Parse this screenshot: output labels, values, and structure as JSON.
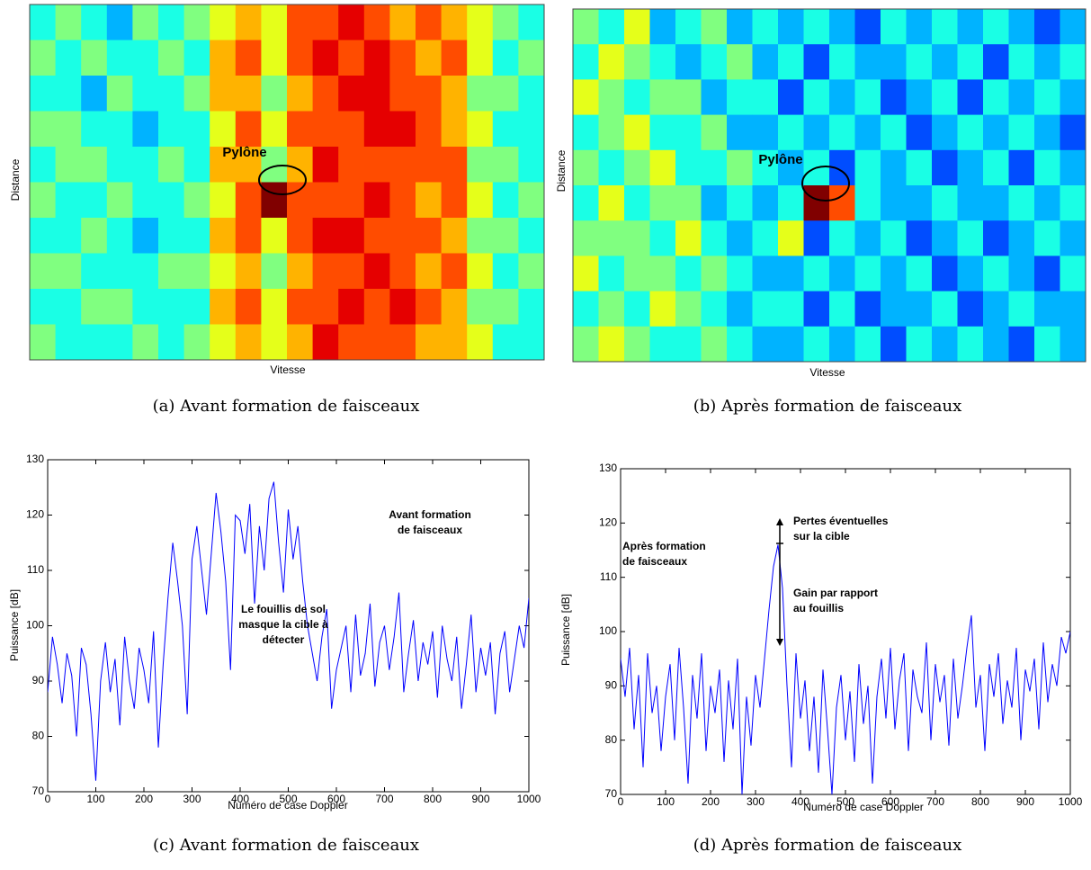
{
  "chart_data": [
    {
      "type": "heatmap",
      "ylabel": "Distance",
      "xlabel": "Vitesse",
      "caption": "(a)  Avant formation de faisceaux",
      "annotation": "Pylône",
      "zlim": [
        0,
        10
      ],
      "values": [
        [
          4,
          5,
          4,
          3,
          5,
          4,
          5,
          6,
          7,
          6,
          8,
          8,
          9,
          8,
          7,
          8,
          7,
          6,
          5,
          4
        ],
        [
          5,
          4,
          5,
          4,
          4,
          5,
          4,
          7,
          8,
          6,
          8,
          9,
          8,
          9,
          8,
          7,
          8,
          6,
          4,
          5
        ],
        [
          4,
          4,
          3,
          5,
          4,
          4,
          5,
          7,
          7,
          5,
          7,
          8,
          9,
          9,
          8,
          8,
          7,
          5,
          5,
          4
        ],
        [
          5,
          5,
          4,
          4,
          3,
          4,
          4,
          6,
          8,
          6,
          8,
          8,
          8,
          9,
          9,
          8,
          7,
          6,
          4,
          4
        ],
        [
          4,
          5,
          5,
          4,
          4,
          5,
          4,
          7,
          7,
          5,
          7,
          9,
          8,
          8,
          8,
          8,
          8,
          5,
          5,
          4
        ],
        [
          5,
          4,
          4,
          5,
          4,
          4,
          5,
          6,
          8,
          10,
          8,
          8,
          8,
          9,
          8,
          7,
          8,
          6,
          4,
          5
        ],
        [
          4,
          4,
          5,
          4,
          3,
          4,
          4,
          7,
          8,
          6,
          8,
          9,
          9,
          8,
          8,
          8,
          7,
          5,
          5,
          4
        ],
        [
          5,
          5,
          4,
          4,
          4,
          5,
          5,
          6,
          7,
          5,
          7,
          8,
          8,
          9,
          8,
          7,
          8,
          6,
          4,
          5
        ],
        [
          4,
          4,
          5,
          5,
          4,
          4,
          4,
          7,
          8,
          6,
          8,
          8,
          9,
          8,
          9,
          8,
          7,
          5,
          5,
          4
        ],
        [
          5,
          4,
          4,
          4,
          5,
          4,
          5,
          6,
          7,
          6,
          7,
          9,
          8,
          8,
          8,
          7,
          7,
          6,
          4,
          4
        ]
      ]
    },
    {
      "type": "heatmap",
      "ylabel": "Distance",
      "xlabel": "Vitesse",
      "caption": "(b)  Après formation de faisceaux",
      "annotation": "Pylône",
      "zlim": [
        0,
        10
      ],
      "values": [
        [
          5,
          4,
          6,
          3,
          4,
          5,
          3,
          4,
          3,
          4,
          3,
          2,
          4,
          3,
          4,
          3,
          4,
          3,
          2,
          3
        ],
        [
          4,
          6,
          5,
          4,
          3,
          4,
          5,
          3,
          4,
          2,
          4,
          3,
          3,
          4,
          3,
          4,
          2,
          4,
          3,
          4
        ],
        [
          6,
          5,
          4,
          5,
          5,
          3,
          4,
          4,
          2,
          4,
          3,
          4,
          2,
          3,
          4,
          2,
          4,
          3,
          4,
          3
        ],
        [
          4,
          5,
          6,
          4,
          4,
          5,
          3,
          3,
          4,
          3,
          4,
          3,
          4,
          2,
          3,
          4,
          3,
          4,
          3,
          2
        ],
        [
          5,
          4,
          5,
          6,
          4,
          4,
          5,
          4,
          3,
          4,
          2,
          4,
          3,
          4,
          2,
          3,
          4,
          2,
          4,
          3
        ],
        [
          4,
          6,
          4,
          5,
          5,
          3,
          4,
          3,
          4,
          10,
          8,
          4,
          3,
          3,
          4,
          3,
          3,
          4,
          3,
          4
        ],
        [
          5,
          5,
          5,
          4,
          6,
          4,
          3,
          4,
          6,
          2,
          4,
          3,
          4,
          2,
          3,
          4,
          2,
          3,
          4,
          3
        ],
        [
          6,
          4,
          5,
          5,
          4,
          5,
          4,
          3,
          3,
          4,
          3,
          4,
          3,
          4,
          2,
          3,
          4,
          3,
          2,
          4
        ],
        [
          4,
          5,
          4,
          6,
          5,
          4,
          3,
          4,
          4,
          2,
          4,
          2,
          3,
          3,
          4,
          2,
          3,
          4,
          3,
          3
        ],
        [
          5,
          6,
          5,
          4,
          4,
          5,
          4,
          3,
          3,
          4,
          3,
          4,
          2,
          4,
          3,
          4,
          3,
          2,
          4,
          3
        ]
      ]
    },
    {
      "type": "line",
      "ylabel": "Puissance [dB]",
      "xlabel": "Numéro de case Doppler",
      "caption": "(c)  Avant formation de faisceaux",
      "color": "#0000ff",
      "xlim": [
        0,
        1000
      ],
      "ylim": [
        70,
        130
      ],
      "xticks": [
        0,
        100,
        200,
        300,
        400,
        500,
        600,
        700,
        800,
        900,
        1000
      ],
      "yticks": [
        70,
        80,
        90,
        100,
        110,
        120,
        130
      ],
      "grid": false,
      "annotations": [
        [
          "Avant formation",
          "de faisceaux"
        ],
        [
          "Le fouillis de sol",
          "masque la cible à",
          "détecter"
        ]
      ],
      "x": [
        0,
        10,
        20,
        30,
        40,
        50,
        60,
        70,
        80,
        90,
        100,
        110,
        120,
        130,
        140,
        150,
        160,
        170,
        180,
        190,
        200,
        210,
        220,
        230,
        240,
        250,
        260,
        270,
        280,
        290,
        300,
        310,
        320,
        330,
        340,
        350,
        360,
        370,
        380,
        390,
        400,
        410,
        420,
        430,
        440,
        450,
        460,
        470,
        480,
        490,
        500,
        510,
        520,
        530,
        540,
        550,
        560,
        570,
        580,
        590,
        600,
        610,
        620,
        630,
        640,
        650,
        660,
        670,
        680,
        690,
        700,
        710,
        720,
        730,
        740,
        750,
        760,
        770,
        780,
        790,
        800,
        810,
        820,
        830,
        840,
        850,
        860,
        870,
        880,
        890,
        900,
        910,
        920,
        930,
        940,
        950,
        960,
        970,
        980,
        990,
        1000
      ],
      "values": [
        88,
        98,
        93,
        86,
        95,
        91,
        80,
        96,
        93,
        84,
        72,
        90,
        97,
        88,
        94,
        82,
        98,
        90,
        85,
        96,
        92,
        86,
        99,
        78,
        93,
        105,
        115,
        108,
        100,
        84,
        112,
        118,
        110,
        102,
        113,
        124,
        117,
        108,
        92,
        120,
        119,
        113,
        122,
        104,
        118,
        110,
        123,
        126,
        115,
        106,
        121,
        112,
        118,
        108,
        100,
        95,
        90,
        98,
        103,
        85,
        92,
        96,
        100,
        88,
        102,
        91,
        95,
        104,
        89,
        97,
        100,
        92,
        98,
        106,
        88,
        95,
        101,
        90,
        97,
        93,
        99,
        87,
        100,
        94,
        90,
        98,
        85,
        93,
        102,
        88,
        96,
        91,
        97,
        84,
        95,
        99,
        88,
        94,
        100,
        96,
        105
      ]
    },
    {
      "type": "line",
      "ylabel": "Puissance [dB]",
      "xlabel": "Numéro de case Doppler",
      "caption": "(d)  Après formation de faisceaux",
      "color": "#0000ff",
      "xlim": [
        0,
        1000
      ],
      "ylim": [
        70,
        130
      ],
      "xticks": [
        0,
        100,
        200,
        300,
        400,
        500,
        600,
        700,
        800,
        900,
        1000
      ],
      "yticks": [
        70,
        80,
        90,
        100,
        110,
        120,
        130
      ],
      "grid": false,
      "annotations": [
        [
          "Pertes éventuelles",
          "sur la cible"
        ],
        [
          "Après formation",
          "de faisceaux"
        ],
        [
          "Gain par rapport",
          "au fouillis"
        ]
      ],
      "x": [
        0,
        10,
        20,
        30,
        40,
        50,
        60,
        70,
        80,
        90,
        100,
        110,
        120,
        130,
        140,
        150,
        160,
        170,
        180,
        190,
        200,
        210,
        220,
        230,
        240,
        250,
        260,
        270,
        280,
        290,
        300,
        310,
        320,
        330,
        340,
        350,
        360,
        370,
        380,
        390,
        400,
        410,
        420,
        430,
        440,
        450,
        460,
        470,
        480,
        490,
        500,
        510,
        520,
        530,
        540,
        550,
        560,
        570,
        580,
        590,
        600,
        610,
        620,
        630,
        640,
        650,
        660,
        670,
        680,
        690,
        700,
        710,
        720,
        730,
        740,
        750,
        760,
        770,
        780,
        790,
        800,
        810,
        820,
        830,
        840,
        850,
        860,
        870,
        880,
        890,
        900,
        910,
        920,
        930,
        940,
        950,
        960,
        970,
        980,
        990,
        1000
      ],
      "values": [
        95,
        88,
        97,
        82,
        92,
        75,
        96,
        85,
        90,
        78,
        88,
        94,
        80,
        97,
        86,
        72,
        92,
        84,
        96,
        78,
        90,
        85,
        93,
        76,
        91,
        82,
        95,
        70,
        88,
        79,
        92,
        86,
        95,
        104,
        112,
        116,
        108,
        90,
        75,
        96,
        84,
        91,
        78,
        88,
        74,
        93,
        82,
        70,
        86,
        92,
        80,
        89,
        76,
        94,
        83,
        90,
        72,
        88,
        95,
        84,
        97,
        82,
        91,
        96,
        78,
        93,
        88,
        85,
        98,
        80,
        94,
        87,
        92,
        79,
        95,
        84,
        90,
        97,
        103,
        86,
        92,
        78,
        94,
        88,
        96,
        83,
        91,
        86,
        97,
        80,
        93,
        89,
        95,
        82,
        98,
        87,
        94,
        90,
        99,
        96,
        100
      ]
    }
  ]
}
